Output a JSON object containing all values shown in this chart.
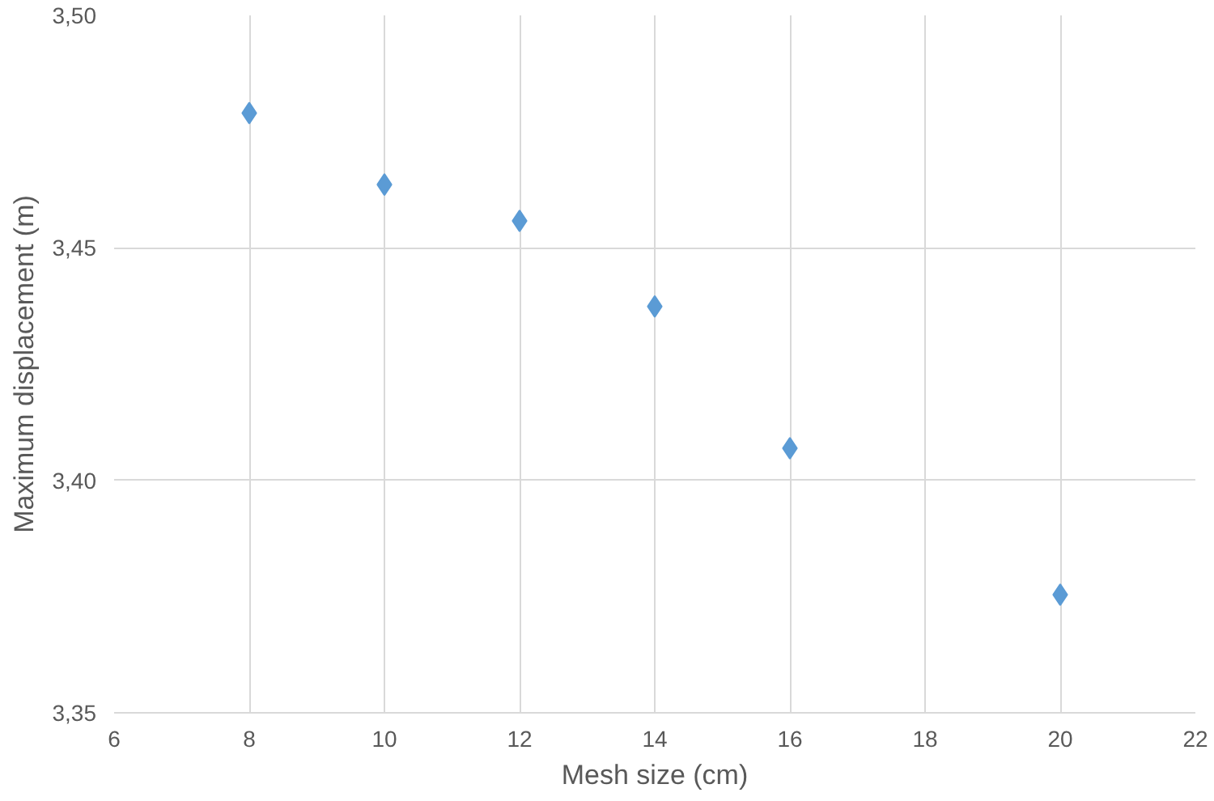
{
  "chart_data": {
    "type": "scatter",
    "xlabel": "Mesh size (cm)",
    "ylabel": "Maximum displacement (m)",
    "x": [
      8,
      10,
      12,
      14,
      16,
      20
    ],
    "values": [
      3.479,
      3.4636,
      3.4558,
      3.4374,
      3.4069,
      3.3754
    ],
    "color": "#5b9bd5",
    "marker": "diamond",
    "grid": true,
    "xlim": [
      6,
      22
    ],
    "xticks": [
      6,
      8,
      10,
      12,
      14,
      16,
      18,
      20,
      22
    ],
    "ylim": [
      3.35,
      3.5
    ],
    "yticks": [
      {
        "value": 3.35,
        "label": "3,35"
      },
      {
        "value": 3.4,
        "label": "3,40"
      },
      {
        "value": 3.45,
        "label": "3,45"
      },
      {
        "value": 3.5,
        "label": "3,50"
      }
    ]
  }
}
